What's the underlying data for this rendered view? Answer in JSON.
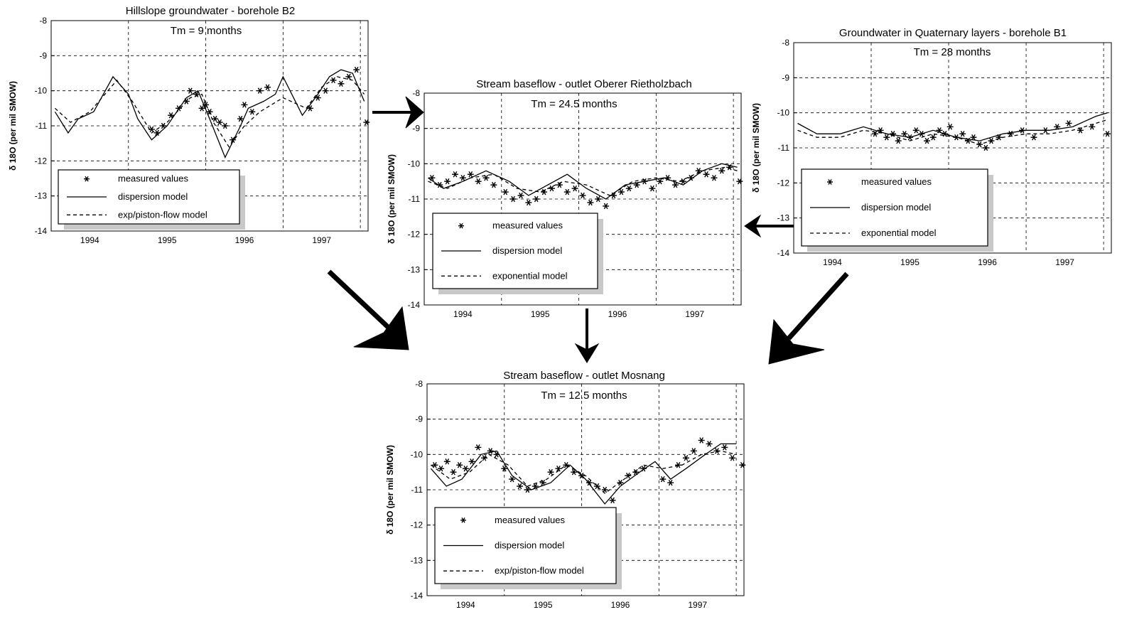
{
  "chart_data": [
    {
      "type": "line",
      "title": "Hillslope groundwater - borehole B2",
      "annotation": "Tm = 9 months",
      "ylabel": "δ 18O (per mil SMOW)",
      "ylim": [
        -14,
        -8
      ],
      "xlim": [
        1993.5,
        1997.6
      ],
      "yticks": [
        "-8",
        "-9",
        "-10",
        "-11",
        "-12",
        "-13",
        "-14"
      ],
      "xticks": [
        "1994",
        "1995",
        "1996",
        "1997"
      ],
      "grid": "dashed",
      "legend_position": "lower-left",
      "legend": [
        {
          "symbol": "star",
          "label": "measured values"
        },
        {
          "symbol": "solid",
          "label": "dispersion model"
        },
        {
          "symbol": "dashed",
          "label": "exp/piston-flow model"
        }
      ],
      "series": [
        {
          "label": "dispersion model",
          "style": "solid",
          "x": [
            1993.55,
            1993.72,
            1993.85,
            1994.05,
            1994.3,
            1994.5,
            1994.62,
            1994.8,
            1995.0,
            1995.25,
            1995.4,
            1995.55,
            1995.75,
            1995.95,
            1996.05,
            1996.25,
            1996.4,
            1996.5,
            1996.75,
            1996.95,
            1997.1,
            1997.25,
            1997.4,
            1997.55
          ],
          "y": [
            -10.6,
            -11.2,
            -10.8,
            -10.6,
            -9.6,
            -10.1,
            -10.8,
            -11.4,
            -11.0,
            -10.2,
            -10.0,
            -10.8,
            -11.9,
            -11.0,
            -10.5,
            -10.3,
            -10.1,
            -9.6,
            -10.7,
            -10.1,
            -9.6,
            -9.4,
            -9.5,
            -10.3
          ]
        },
        {
          "label": "exp/piston-flow model",
          "style": "dashed",
          "x": [
            1993.55,
            1993.75,
            1994.0,
            1994.35,
            1994.55,
            1994.8,
            1995.0,
            1995.3,
            1995.45,
            1995.6,
            1995.8,
            1996.0,
            1996.2,
            1996.35,
            1996.5,
            1996.8,
            1997.0,
            1997.2,
            1997.4,
            1997.55
          ],
          "y": [
            -10.5,
            -10.9,
            -10.6,
            -9.7,
            -10.3,
            -11.2,
            -10.9,
            -10.2,
            -10.1,
            -10.9,
            -11.6,
            -11.0,
            -10.6,
            -10.4,
            -10.2,
            -10.5,
            -9.9,
            -9.6,
            -9.7,
            -10.1
          ]
        },
        {
          "label": "measured values",
          "style": "star",
          "x": [
            1994.8,
            1994.87,
            1994.95,
            1995.05,
            1995.15,
            1995.25,
            1995.3,
            1995.38,
            1995.45,
            1995.5,
            1995.55,
            1995.62,
            1995.68,
            1995.75,
            1995.85,
            1995.95,
            1996.0,
            1996.1,
            1996.2,
            1996.3,
            1996.85,
            1996.95,
            1997.05,
            1997.15,
            1997.25,
            1997.35,
            1997.45,
            1997.58
          ],
          "y": [
            -11.1,
            -11.2,
            -11.0,
            -10.7,
            -10.5,
            -10.3,
            -10.0,
            -10.1,
            -10.5,
            -10.4,
            -10.6,
            -10.8,
            -10.9,
            -11.0,
            -11.4,
            -10.8,
            -10.4,
            -10.6,
            -10.0,
            -9.9,
            -10.5,
            -10.2,
            -10.0,
            -9.7,
            -9.8,
            -9.6,
            -9.4,
            -10.9
          ]
        }
      ]
    },
    {
      "type": "line",
      "title": "Stream baseflow - outlet Oberer Rietholzbach",
      "annotation": "Tm = 24.5 months",
      "ylabel": "δ 18O (per mil SMOW)",
      "ylim": [
        -14,
        -8
      ],
      "xlim": [
        1993.5,
        1997.6
      ],
      "yticks": [
        "-8",
        "-9",
        "-10",
        "-11",
        "-12",
        "-13",
        "-14"
      ],
      "xticks": [
        "1994",
        "1995",
        "1996",
        "1997"
      ],
      "grid": "dashed",
      "legend_position": "lower-left",
      "legend": [
        {
          "symbol": "star",
          "label": "measured values"
        },
        {
          "symbol": "solid",
          "label": "dispersion model"
        },
        {
          "symbol": "dashed",
          "label": "exponential model"
        }
      ],
      "series": [
        {
          "label": "dispersion model",
          "style": "solid",
          "x": [
            1993.55,
            1993.75,
            1994.0,
            1994.3,
            1994.6,
            1994.85,
            1995.1,
            1995.35,
            1995.6,
            1995.85,
            1996.1,
            1996.35,
            1996.6,
            1996.85,
            1997.1,
            1997.35,
            1997.55
          ],
          "y": [
            -10.4,
            -10.7,
            -10.5,
            -10.2,
            -10.5,
            -10.9,
            -10.6,
            -10.3,
            -10.7,
            -11.0,
            -10.6,
            -10.5,
            -10.4,
            -10.6,
            -10.2,
            -10.0,
            -10.1
          ]
        },
        {
          "label": "exponential model",
          "style": "dashed",
          "x": [
            1993.55,
            1993.8,
            1994.1,
            1994.4,
            1994.7,
            1995.0,
            1995.3,
            1995.6,
            1995.9,
            1996.2,
            1996.5,
            1996.8,
            1997.1,
            1997.4,
            1997.55
          ],
          "y": [
            -10.5,
            -10.7,
            -10.4,
            -10.3,
            -10.7,
            -10.8,
            -10.5,
            -10.6,
            -10.9,
            -10.5,
            -10.4,
            -10.5,
            -10.2,
            -10.1,
            -10.2
          ]
        },
        {
          "label": "measured values",
          "style": "star",
          "x": [
            1993.6,
            1993.7,
            1993.8,
            1993.9,
            1994.0,
            1994.1,
            1994.2,
            1994.3,
            1994.4,
            1994.55,
            1994.65,
            1994.75,
            1994.85,
            1994.95,
            1995.05,
            1995.15,
            1995.25,
            1995.35,
            1995.45,
            1995.55,
            1995.65,
            1995.75,
            1995.85,
            1995.95,
            1996.05,
            1996.15,
            1996.25,
            1996.35,
            1996.45,
            1996.55,
            1996.65,
            1996.75,
            1996.85,
            1996.95,
            1997.05,
            1997.15,
            1997.25,
            1997.35,
            1997.45,
            1997.58
          ],
          "y": [
            -10.4,
            -10.6,
            -10.5,
            -10.3,
            -10.4,
            -10.3,
            -10.5,
            -10.4,
            -10.6,
            -10.8,
            -11.0,
            -10.9,
            -11.1,
            -11.0,
            -10.8,
            -10.7,
            -10.6,
            -10.8,
            -10.7,
            -10.9,
            -11.1,
            -11.0,
            -11.2,
            -10.9,
            -10.8,
            -10.7,
            -10.6,
            -10.5,
            -10.7,
            -10.5,
            -10.4,
            -10.6,
            -10.5,
            -10.4,
            -10.2,
            -10.3,
            -10.4,
            -10.2,
            -10.1,
            -10.5
          ]
        }
      ]
    },
    {
      "type": "line",
      "title": "Groundwater in Quaternary layers - borehole B1",
      "annotation": "Tm = 28 months",
      "ylabel": "δ 18O (per mil SMOW)",
      "ylim": [
        -14,
        -8
      ],
      "xlim": [
        1993.5,
        1997.6
      ],
      "yticks": [
        "-8",
        "-9",
        "-10",
        "-11",
        "-12",
        "-13",
        "-14"
      ],
      "xticks": [
        "1994",
        "1995",
        "1996",
        "1997"
      ],
      "grid": "dashed",
      "legend_position": "lower-left",
      "legend": [
        {
          "symbol": "star",
          "label": "measured values"
        },
        {
          "symbol": "solid",
          "label": "dispersion model"
        },
        {
          "symbol": "dashed",
          "label": "exponential model"
        }
      ],
      "series": [
        {
          "label": "dispersion model",
          "style": "solid",
          "x": [
            1993.55,
            1993.8,
            1994.1,
            1994.4,
            1994.7,
            1995.0,
            1995.3,
            1995.6,
            1995.9,
            1996.2,
            1996.5,
            1996.8,
            1997.1,
            1997.4,
            1997.55
          ],
          "y": [
            -10.3,
            -10.6,
            -10.6,
            -10.4,
            -10.6,
            -10.7,
            -10.5,
            -10.7,
            -10.8,
            -10.6,
            -10.5,
            -10.5,
            -10.4,
            -10.1,
            -10.0
          ]
        },
        {
          "label": "exponential model",
          "style": "dashed",
          "x": [
            1993.55,
            1993.8,
            1994.1,
            1994.4,
            1994.7,
            1995.0,
            1995.3,
            1995.6,
            1995.9,
            1996.2,
            1996.5,
            1996.8,
            1997.1,
            1997.4,
            1997.55
          ],
          "y": [
            -10.5,
            -10.7,
            -10.7,
            -10.5,
            -10.6,
            -10.8,
            -10.6,
            -10.7,
            -10.9,
            -10.7,
            -10.6,
            -10.6,
            -10.5,
            -10.3,
            -10.2
          ]
        },
        {
          "label": "measured values",
          "style": "star",
          "x": [
            1994.55,
            1994.62,
            1994.7,
            1994.78,
            1994.85,
            1994.93,
            1995.0,
            1995.08,
            1995.15,
            1995.22,
            1995.3,
            1995.38,
            1995.45,
            1995.52,
            1995.6,
            1995.68,
            1995.75,
            1995.82,
            1995.9,
            1995.98,
            1996.05,
            1996.15,
            1996.3,
            1996.45,
            1996.6,
            1996.75,
            1996.9,
            1997.05,
            1997.2,
            1997.35,
            1997.55
          ],
          "y": [
            -10.6,
            -10.5,
            -10.7,
            -10.6,
            -10.8,
            -10.6,
            -10.7,
            -10.5,
            -10.6,
            -10.8,
            -10.7,
            -10.5,
            -10.6,
            -10.4,
            -10.7,
            -10.6,
            -10.8,
            -10.7,
            -10.9,
            -11.0,
            -10.8,
            -10.7,
            -10.6,
            -10.5,
            -10.7,
            -10.5,
            -10.4,
            -10.3,
            -10.5,
            -10.4,
            -10.6
          ]
        }
      ]
    },
    {
      "type": "line",
      "title": "Stream baseflow - outlet Mosnang",
      "annotation": "Tm = 12.5 months",
      "ylabel": "δ 18O (per mil SMOW)",
      "ylim": [
        -14,
        -8
      ],
      "xlim": [
        1993.5,
        1997.6
      ],
      "yticks": [
        "-8",
        "-9",
        "-10",
        "-11",
        "-12",
        "-13",
        "-14"
      ],
      "xticks": [
        "1994",
        "1995",
        "1996",
        "1997"
      ],
      "grid": "dashed",
      "legend_position": "lower-left",
      "legend": [
        {
          "symbol": "star",
          "label": "measured values"
        },
        {
          "symbol": "solid",
          "label": "dispersion model"
        },
        {
          "symbol": "dashed",
          "label": "exp/piston-flow model"
        }
      ],
      "series": [
        {
          "label": "dispersion model",
          "style": "solid",
          "x": [
            1993.55,
            1993.75,
            1993.95,
            1994.2,
            1994.4,
            1994.6,
            1994.85,
            1995.1,
            1995.35,
            1995.55,
            1995.8,
            1996.0,
            1996.25,
            1996.45,
            1996.65,
            1996.85,
            1997.1,
            1997.3,
            1997.5
          ],
          "y": [
            -10.4,
            -10.9,
            -10.7,
            -10.0,
            -9.9,
            -10.6,
            -11.0,
            -10.8,
            -10.3,
            -10.7,
            -11.4,
            -10.9,
            -10.5,
            -10.2,
            -10.7,
            -10.4,
            -10.0,
            -9.7,
            -9.7
          ]
        },
        {
          "label": "exp/piston-flow model",
          "style": "dashed",
          "x": [
            1993.55,
            1993.8,
            1994.05,
            1994.3,
            1994.55,
            1994.8,
            1995.05,
            1995.3,
            1995.55,
            1995.8,
            1996.05,
            1996.3,
            1996.55,
            1996.8,
            1997.05,
            1997.3,
            1997.5
          ],
          "y": [
            -10.3,
            -10.7,
            -10.5,
            -10.0,
            -10.3,
            -10.9,
            -10.7,
            -10.3,
            -10.6,
            -11.1,
            -10.7,
            -10.3,
            -10.4,
            -10.3,
            -10.0,
            -9.9,
            -10.0
          ]
        },
        {
          "label": "measured values",
          "style": "star",
          "x": [
            1993.6,
            1993.68,
            1993.76,
            1993.84,
            1993.92,
            1994.0,
            1994.08,
            1994.16,
            1994.24,
            1994.32,
            1994.4,
            1994.5,
            1994.6,
            1994.7,
            1994.8,
            1994.9,
            1995.0,
            1995.1,
            1995.2,
            1995.3,
            1995.4,
            1995.5,
            1995.6,
            1995.7,
            1995.8,
            1995.9,
            1996.0,
            1996.1,
            1996.2,
            1996.3,
            1996.55,
            1996.65,
            1996.75,
            1996.85,
            1996.95,
            1997.05,
            1997.15,
            1997.25,
            1997.35,
            1997.45,
            1997.58
          ],
          "y": [
            -10.3,
            -10.4,
            -10.2,
            -10.5,
            -10.3,
            -10.4,
            -10.2,
            -9.8,
            -10.1,
            -9.9,
            -10.0,
            -10.4,
            -10.7,
            -10.9,
            -11.0,
            -10.9,
            -10.8,
            -10.5,
            -10.4,
            -10.3,
            -10.5,
            -10.6,
            -10.8,
            -10.9,
            -11.0,
            -11.3,
            -10.8,
            -10.6,
            -10.5,
            -10.4,
            -10.7,
            -10.8,
            -10.3,
            -10.1,
            -9.9,
            -9.6,
            -9.7,
            -9.9,
            -9.8,
            -10.1,
            -10.3
          ]
        }
      ]
    }
  ]
}
